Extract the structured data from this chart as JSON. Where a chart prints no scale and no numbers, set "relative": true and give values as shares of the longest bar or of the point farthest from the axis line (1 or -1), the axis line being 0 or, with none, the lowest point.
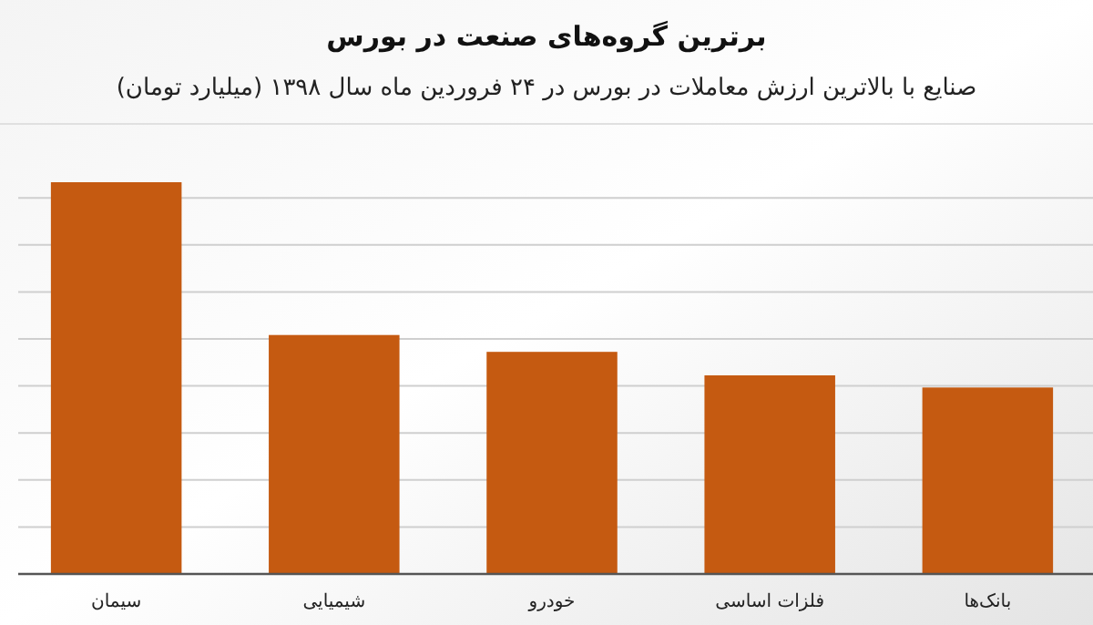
{
  "chart_data": {
    "type": "bar",
    "title": "برترین گروه‌های صنعت در بورس",
    "subtitle": "صنایع با بالاترین ارزش معاملات در بورس در ۲۴ فروردین ماه سال ۱۳۹۸ (میلیارد تومان)",
    "categories": [
      "سیمان",
      "شیمیایی",
      "خودرو",
      "فلزات اساسی",
      "بانک‌ها"
    ],
    "values": [
      1,
      0.61,
      0.567,
      0.507,
      0.476
    ],
    "color": "#c55a11",
    "relative": true,
    "grid": "y"
  }
}
